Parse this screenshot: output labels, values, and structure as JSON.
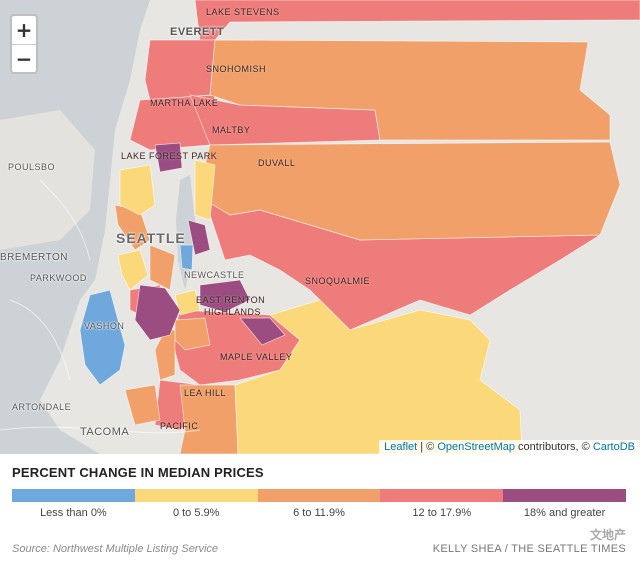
{
  "map": {
    "zoom_in_label": "+",
    "zoom_out_label": "−",
    "place_labels": {
      "lake_stevens": "LAKE STEVENS",
      "everett": "EVERETT",
      "snohomish": "SNOHOMISH",
      "martha_lake": "MARTHA LAKE",
      "maltby": "MALTBY",
      "poulsbo": "POULSBO",
      "lake_forest_park": "LAKE FOREST PARK",
      "duvall": "DUVALL",
      "seattle": "SEATTLE",
      "bremerton": "BREMERTON",
      "parkwood": "PARKWOOD",
      "newcastle": "NEWCASTLE",
      "snoqualmie": "SNOQUALMIE",
      "east_renton_highlands_1": "EAST RENTON",
      "east_renton_highlands_2": "HIGHLANDS",
      "vashon": "VASHON",
      "maple_valley": "MAPLE VALLEY",
      "artondale": "ARTONDALE",
      "lea_hill": "LEA HILL",
      "tacoma": "TACOMA",
      "pacific": "PACIFIC"
    },
    "attribution": {
      "leaflet": "Leaflet",
      "separator": " | © ",
      "osm": "OpenStreetMap",
      "contributors": " contributors, © ",
      "carto": "CartoDB"
    }
  },
  "legend": {
    "title": "PERCENT CHANGE IN MEDIAN PRICES",
    "categories": [
      {
        "label": "Less than 0%",
        "color": "#6fa8dc"
      },
      {
        "label": "0 to 5.9%",
        "color": "#fbd97a"
      },
      {
        "label": "6 to 11.9%",
        "color": "#f0a068"
      },
      {
        "label": "12 to 17.9%",
        "color": "#ee7c7a"
      },
      {
        "label": "18% and greater",
        "color": "#9b4d82"
      }
    ]
  },
  "footer": {
    "source": "Source: Northwest Multiple Listing Service",
    "credit": "KELLY SHEA / THE SEATTLE TIMES",
    "watermark": "文地产"
  }
}
